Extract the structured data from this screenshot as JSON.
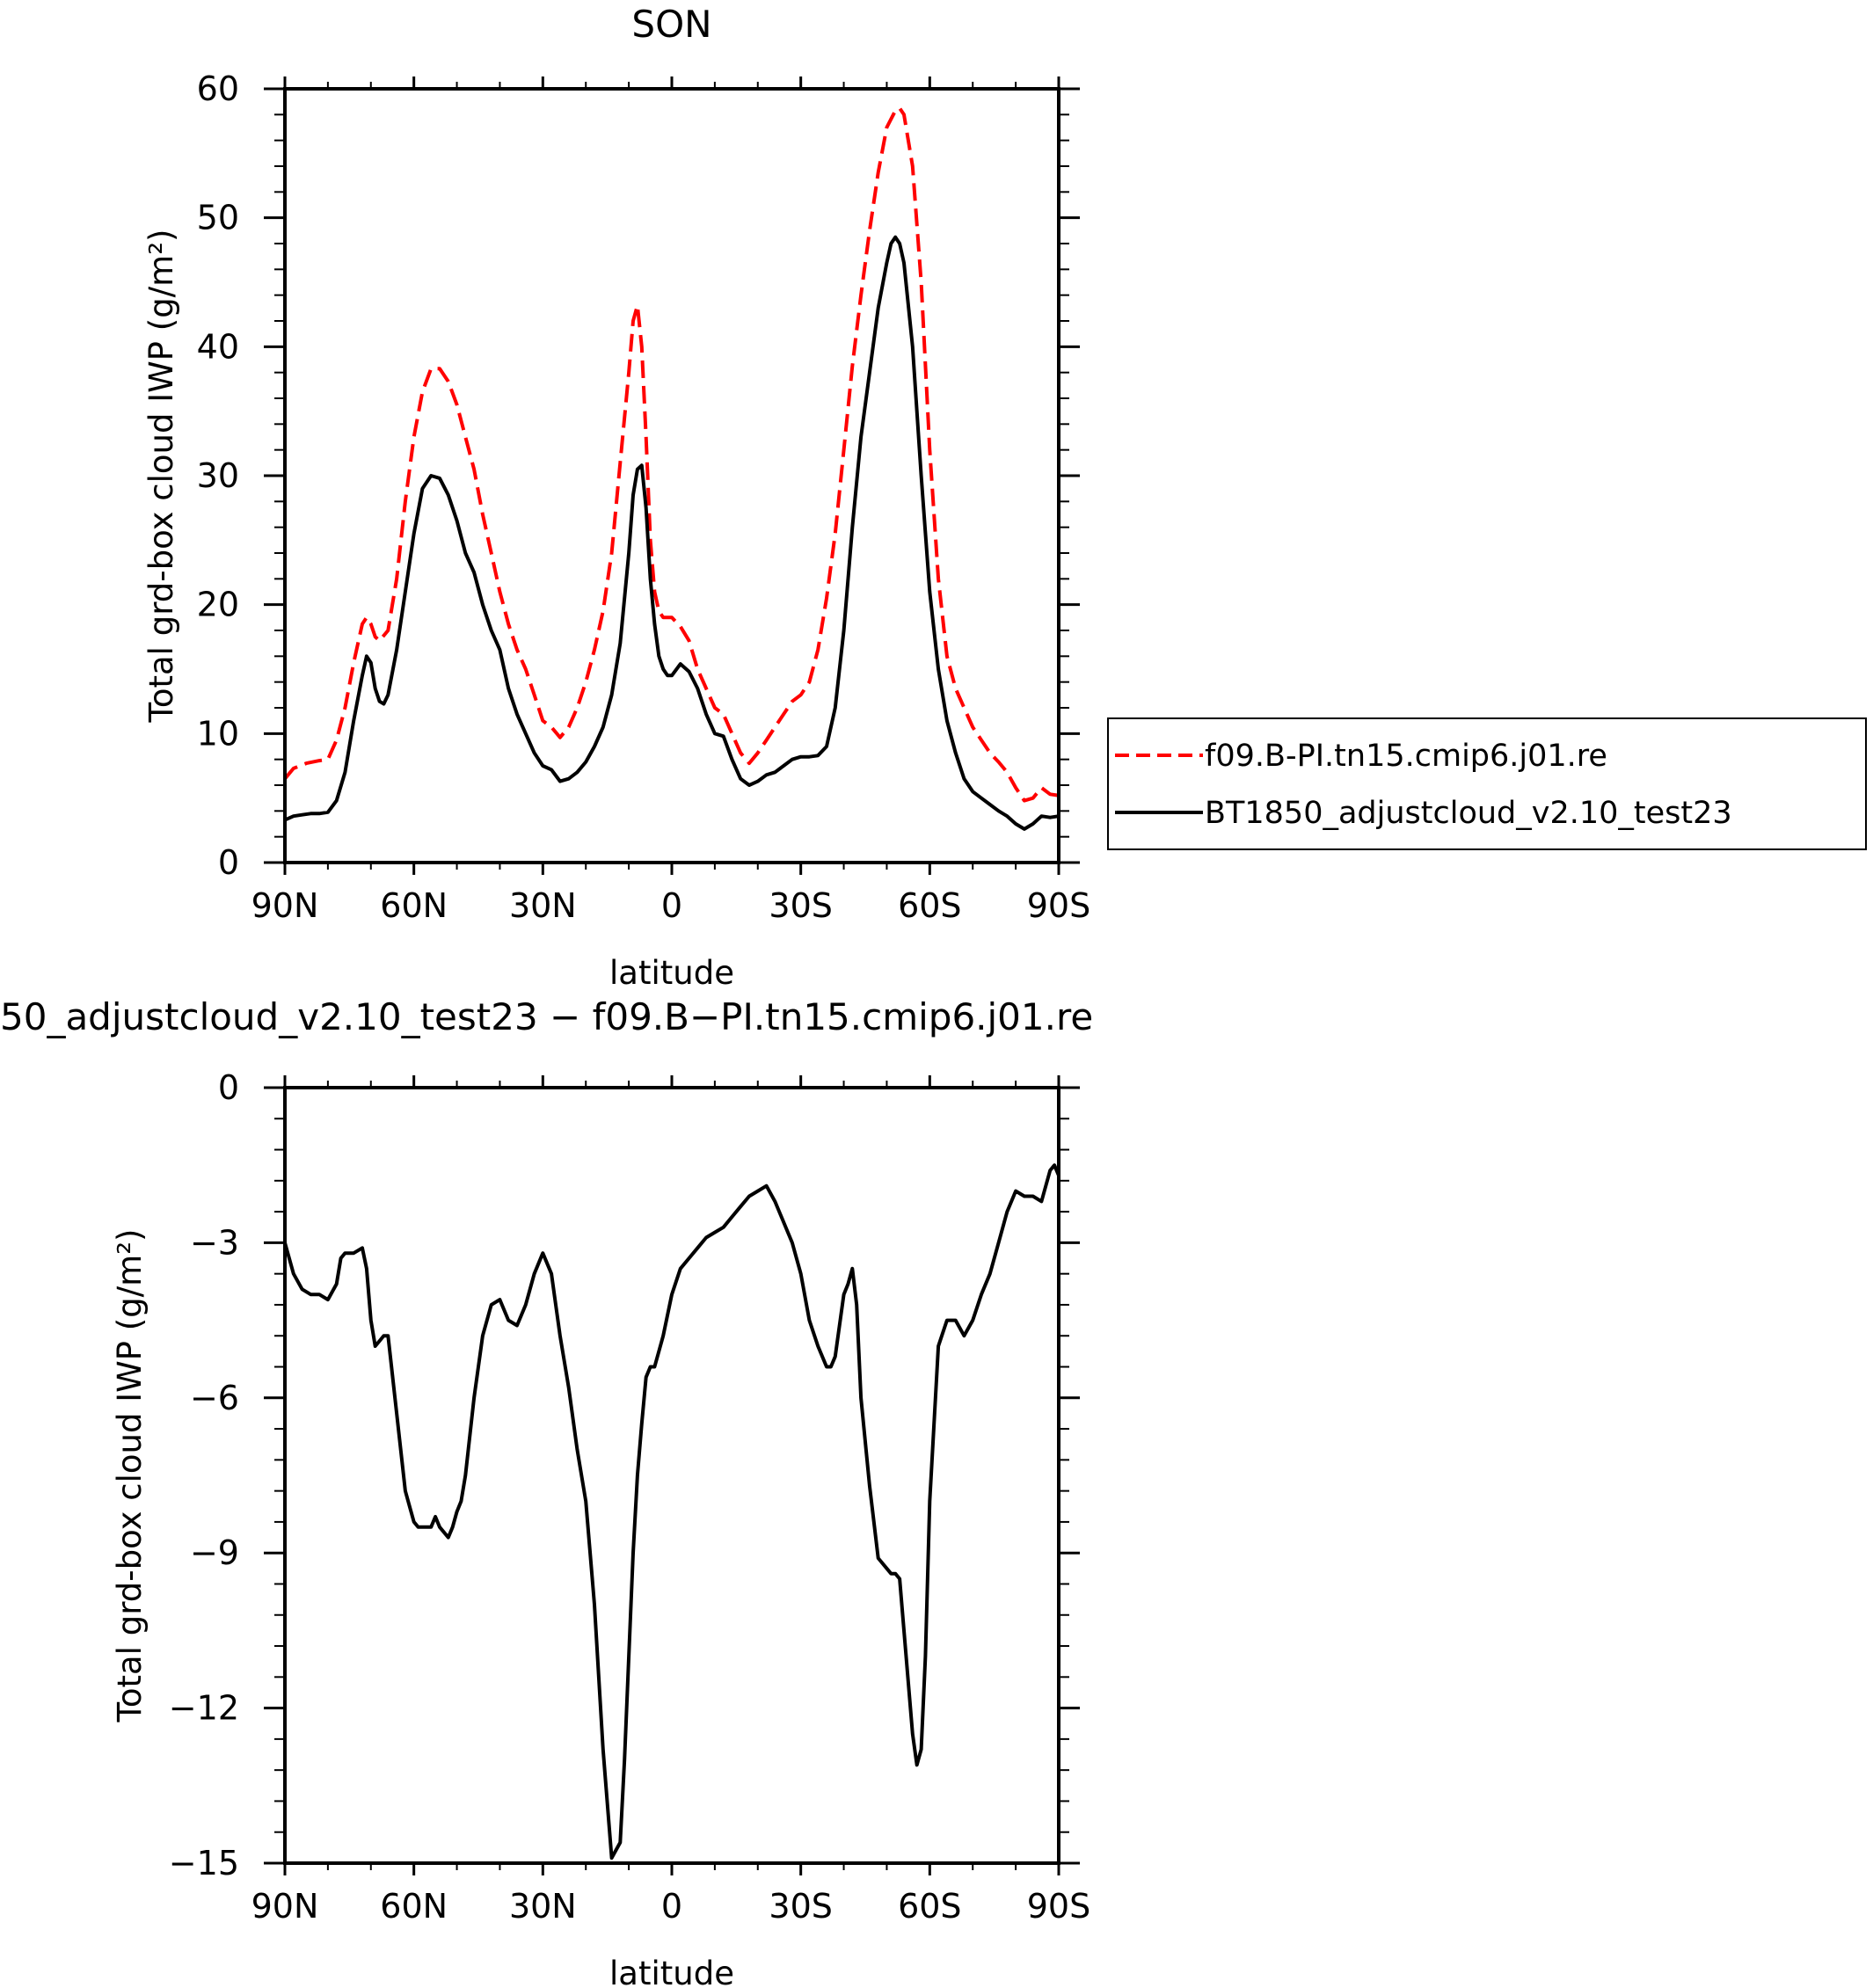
{
  "chart_data": [
    {
      "type": "line",
      "title": "SON",
      "xlabel": "latitude",
      "ylabel": "Total grd-box cloud IWP (g/m²)",
      "xlim": [
        90,
        -90
      ],
      "ylim": [
        0,
        60
      ],
      "x_tick_values": [
        90,
        60,
        30,
        0,
        -30,
        -60,
        -90
      ],
      "x_tick_labels": [
        "90N",
        "60N",
        "30N",
        "0",
        "30S",
        "60S",
        "90S"
      ],
      "y_ticks": [
        0,
        10,
        20,
        30,
        40,
        50,
        60
      ],
      "y_tick_labels": [
        "0",
        "10",
        "20",
        "30",
        "40",
        "50",
        "60"
      ],
      "grid": false,
      "legend": {
        "placement": "right, outside plot",
        "entries": [
          "f09.B-PI.tn15.cmip6.j01.re",
          "BT1850_adjustcloud_v2.10_test23"
        ]
      },
      "series": [
        {
          "name": "f09.B-PI.tn15.cmip6.j01.re",
          "color": "#ff0000",
          "style": "dashed",
          "x": [
            90,
            88,
            85,
            82,
            80,
            78,
            76,
            74,
            72,
            71,
            70,
            69,
            68,
            66,
            64,
            62,
            60,
            58,
            56,
            54,
            52,
            50,
            48,
            46,
            44,
            42,
            40,
            38,
            36,
            34,
            32,
            30,
            28,
            26,
            24,
            22,
            20,
            18,
            16,
            14,
            12,
            10,
            9,
            8,
            7,
            6,
            5,
            4,
            3,
            2,
            0,
            -2,
            -4,
            -6,
            -8,
            -10,
            -12,
            -14,
            -16,
            -18,
            -20,
            -22,
            -24,
            -26,
            -28,
            -30,
            -32,
            -34,
            -36,
            -38,
            -40,
            -42,
            -44,
            -46,
            -48,
            -50,
            -52,
            -53,
            -54,
            -56,
            -58,
            -60,
            -62,
            -64,
            -66,
            -68,
            -70,
            -72,
            -74,
            -76,
            -78,
            -80,
            -82,
            -84,
            -86,
            -88,
            -90
          ],
          "values": [
            6.5,
            7.3,
            7.7,
            7.9,
            8.0,
            9.5,
            12.0,
            15.5,
            18.5,
            19.0,
            18.5,
            17.5,
            17.2,
            18.0,
            22.0,
            28.0,
            33.0,
            36.5,
            38.3,
            38.3,
            37.3,
            35.5,
            33.0,
            30.5,
            27.0,
            24.0,
            21.0,
            18.5,
            16.5,
            15.0,
            13.0,
            11.0,
            10.5,
            9.7,
            10.5,
            12.0,
            14.0,
            16.5,
            19.5,
            24.0,
            31.0,
            38.0,
            42.0,
            43.2,
            40.0,
            33.0,
            25.0,
            21.0,
            19.5,
            19.0,
            19.0,
            18.3,
            17.2,
            15.0,
            13.5,
            12.0,
            11.5,
            10.0,
            8.5,
            7.7,
            8.5,
            9.5,
            10.5,
            11.5,
            12.5,
            13.0,
            14.0,
            16.5,
            20.5,
            25.5,
            32.0,
            38.5,
            44.0,
            49.0,
            53.5,
            57.0,
            58.3,
            58.5,
            58.0,
            54.0,
            45.0,
            32.0,
            22.0,
            16.0,
            13.5,
            12.0,
            10.5,
            9.5,
            8.5,
            7.8,
            7.0,
            5.8,
            4.8,
            5.0,
            5.8,
            5.3,
            5.2
          ]
        },
        {
          "name": "BT1850_adjustcloud_v2.10_test23",
          "color": "#000000",
          "style": "solid",
          "x": [
            90,
            88,
            86,
            84,
            82,
            80,
            78,
            76,
            74,
            72,
            71,
            70,
            69,
            68,
            67,
            66,
            64,
            62,
            60,
            58,
            56,
            54,
            52,
            50,
            48,
            46,
            44,
            42,
            40,
            38,
            36,
            34,
            32,
            30,
            28,
            26,
            24,
            22,
            20,
            18,
            16,
            14,
            12,
            10,
            9,
            8,
            7,
            6,
            5,
            4,
            3,
            2,
            1,
            0,
            -2,
            -4,
            -6,
            -8,
            -10,
            -12,
            -14,
            -16,
            -18,
            -20,
            -22,
            -24,
            -26,
            -28,
            -30,
            -32,
            -34,
            -36,
            -38,
            -40,
            -42,
            -44,
            -46,
            -48,
            -50,
            -51,
            -52,
            -53,
            -54,
            -56,
            -58,
            -60,
            -62,
            -64,
            -66,
            -68,
            -70,
            -72,
            -74,
            -76,
            -78,
            -80,
            -82,
            -84,
            -86,
            -88,
            -90
          ],
          "values": [
            3.3,
            3.6,
            3.7,
            3.8,
            3.8,
            3.9,
            4.8,
            7.0,
            11.0,
            14.5,
            16.0,
            15.5,
            13.5,
            12.5,
            12.3,
            13.0,
            16.5,
            21.0,
            25.5,
            29.0,
            30.0,
            29.8,
            28.5,
            26.5,
            24.0,
            22.5,
            20.0,
            18.0,
            16.5,
            13.5,
            11.5,
            10.0,
            8.5,
            7.5,
            7.2,
            6.3,
            6.5,
            7.0,
            7.8,
            9.0,
            10.5,
            13.0,
            17.0,
            24.0,
            28.5,
            30.5,
            30.8,
            27.5,
            22.0,
            18.5,
            16.0,
            15.0,
            14.5,
            14.5,
            15.4,
            14.8,
            13.5,
            11.5,
            10.0,
            9.8,
            8.0,
            6.5,
            6.0,
            6.3,
            6.8,
            7.0,
            7.5,
            8.0,
            8.2,
            8.2,
            8.3,
            9.0,
            12.0,
            18.0,
            26.0,
            33.0,
            38.0,
            43.0,
            46.5,
            48.0,
            48.5,
            48.0,
            46.5,
            40.0,
            30.0,
            21.0,
            15.0,
            11.0,
            8.5,
            6.5,
            5.5,
            5.0,
            4.5,
            4.0,
            3.6,
            3.0,
            2.6,
            3.0,
            3.6,
            3.5,
            3.6
          ]
        }
      ]
    },
    {
      "type": "line",
      "title": "50_adjustcloud_v2.10_test23 − f09.B−PI.tn15.cmip6.j01.re",
      "xlabel": "latitude",
      "ylabel": "Total grd-box cloud IWP (g/m²)",
      "xlim": [
        90,
        -90
      ],
      "ylim": [
        -15,
        0
      ],
      "x_tick_values": [
        90,
        60,
        30,
        0,
        -30,
        -60,
        -90
      ],
      "x_tick_labels": [
        "90N",
        "60N",
        "30N",
        "0",
        "30S",
        "60S",
        "90S"
      ],
      "y_ticks": [
        -15,
        -12,
        -9,
        -6,
        -3,
        0
      ],
      "y_tick_labels": [
        "−15",
        "−12",
        "−9",
        "−6",
        "−3",
        "0"
      ],
      "grid": false,
      "series": [
        {
          "color": "#000000",
          "style": "solid",
          "x": [
            90,
            88,
            86,
            84,
            82,
            80,
            78,
            77,
            76,
            74,
            72,
            71,
            70,
            69,
            68,
            67,
            66,
            64,
            62,
            61,
            60,
            59,
            58,
            56,
            55,
            54,
            52,
            51,
            50,
            49,
            48,
            46,
            44,
            42,
            40,
            38,
            36,
            34,
            32,
            30,
            28,
            26,
            25,
            24,
            22,
            20,
            18,
            16,
            14,
            12,
            11,
            10,
            9,
            8,
            7,
            6,
            5,
            4,
            3,
            2,
            1,
            0,
            -2,
            -4,
            -6,
            -8,
            -10,
            -12,
            -14,
            -16,
            -18,
            -20,
            -22,
            -24,
            -26,
            -28,
            -30,
            -32,
            -34,
            -36,
            -37,
            -38,
            -40,
            -41,
            -42,
            -43,
            -44,
            -46,
            -48,
            -50,
            -51,
            -52,
            -53,
            -54,
            -56,
            -57,
            -58,
            -59,
            -60,
            -62,
            -64,
            -66,
            -68,
            -70,
            -72,
            -74,
            -76,
            -78,
            -80,
            -82,
            -84,
            -86,
            -88,
            -89,
            -90
          ],
          "values": [
            -3.0,
            -3.6,
            -3.9,
            -4.0,
            -4.0,
            -4.1,
            -3.8,
            -3.3,
            -3.2,
            -3.2,
            -3.1,
            -3.5,
            -4.5,
            -5.0,
            -4.9,
            -4.8,
            -4.8,
            -6.3,
            -7.8,
            -8.1,
            -8.4,
            -8.5,
            -8.5,
            -8.5,
            -8.3,
            -8.5,
            -8.7,
            -8.5,
            -8.2,
            -8.0,
            -7.5,
            -6.0,
            -4.8,
            -4.2,
            -4.1,
            -4.5,
            -4.6,
            -4.2,
            -3.6,
            -3.2,
            -3.6,
            -4.8,
            -5.3,
            -5.8,
            -7.0,
            -8.0,
            -10.0,
            -12.8,
            -14.9,
            -14.6,
            -13.0,
            -11.0,
            -9.0,
            -7.5,
            -6.5,
            -5.6,
            -5.4,
            -5.4,
            -5.1,
            -4.8,
            -4.4,
            -4.0,
            -3.5,
            -3.3,
            -3.1,
            -2.9,
            -2.8,
            -2.7,
            -2.5,
            -2.3,
            -2.1,
            -2.0,
            -1.9,
            -2.2,
            -2.6,
            -3.0,
            -3.6,
            -4.5,
            -5.0,
            -5.4,
            -5.4,
            -5.2,
            -4.0,
            -3.8,
            -3.5,
            -4.2,
            -6.0,
            -7.7,
            -9.1,
            -9.3,
            -9.4,
            -9.4,
            -9.5,
            -10.5,
            -12.5,
            -13.1,
            -12.8,
            -11.0,
            -8.0,
            -5.0,
            -4.5,
            -4.5,
            -4.8,
            -4.5,
            -4.0,
            -3.6,
            -3.0,
            -2.4,
            -2.0,
            -2.1,
            -2.1,
            -2.2,
            -1.6,
            -1.5,
            -1.7
          ]
        }
      ]
    }
  ]
}
